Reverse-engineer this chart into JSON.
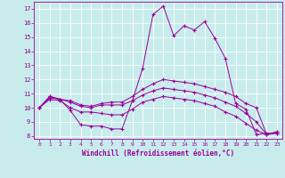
{
  "xlabel": "Windchill (Refroidissement éolien,°C)",
  "bg_color": "#c8ecec",
  "line_color": "#990099",
  "grid_color": "#ffffff",
  "xlim": [
    -0.5,
    23.5
  ],
  "ylim": [
    7.8,
    17.5
  ],
  "xticks": [
    0,
    1,
    2,
    3,
    4,
    5,
    6,
    7,
    8,
    9,
    10,
    11,
    12,
    13,
    14,
    15,
    16,
    17,
    18,
    19,
    20,
    21,
    22,
    23
  ],
  "yticks": [
    8,
    9,
    10,
    11,
    12,
    13,
    14,
    15,
    16,
    17
  ],
  "series": [
    {
      "x": [
        0,
        1,
        2,
        3,
        4,
        5,
        6,
        7,
        8,
        9,
        10,
        11,
        12,
        13,
        14,
        15,
        16,
        17,
        18,
        19,
        20,
        21,
        22,
        23
      ],
      "y": [
        10.0,
        10.8,
        10.6,
        9.8,
        8.8,
        8.7,
        8.7,
        8.5,
        8.5,
        10.5,
        12.8,
        16.6,
        17.2,
        15.1,
        15.8,
        15.5,
        16.1,
        14.9,
        13.5,
        10.3,
        9.9,
        8.1,
        8.2,
        8.2
      ]
    },
    {
      "x": [
        0,
        1,
        2,
        3,
        4,
        5,
        6,
        7,
        8,
        9,
        10,
        11,
        12,
        13,
        14,
        15,
        16,
        17,
        18,
        19,
        20,
        21,
        22,
        23
      ],
      "y": [
        10.0,
        10.8,
        10.6,
        10.5,
        10.2,
        10.1,
        10.3,
        10.4,
        10.4,
        10.8,
        11.3,
        11.7,
        12.0,
        11.9,
        11.8,
        11.7,
        11.5,
        11.3,
        11.1,
        10.8,
        10.3,
        10.0,
        8.1,
        8.3
      ]
    },
    {
      "x": [
        0,
        1,
        2,
        3,
        4,
        5,
        6,
        7,
        8,
        9,
        10,
        11,
        12,
        13,
        14,
        15,
        16,
        17,
        18,
        19,
        20,
        21,
        22,
        23
      ],
      "y": [
        10.0,
        10.7,
        10.6,
        10.4,
        10.1,
        10.0,
        10.2,
        10.2,
        10.2,
        10.5,
        10.9,
        11.2,
        11.4,
        11.3,
        11.2,
        11.1,
        10.9,
        10.7,
        10.4,
        10.1,
        9.6,
        9.0,
        8.1,
        8.3
      ]
    },
    {
      "x": [
        0,
        1,
        2,
        3,
        4,
        5,
        6,
        7,
        8,
        9,
        10,
        11,
        12,
        13,
        14,
        15,
        16,
        17,
        18,
        19,
        20,
        21,
        22,
        23
      ],
      "y": [
        10.0,
        10.6,
        10.5,
        10.0,
        9.7,
        9.7,
        9.6,
        9.5,
        9.5,
        9.9,
        10.4,
        10.6,
        10.8,
        10.7,
        10.6,
        10.5,
        10.3,
        10.1,
        9.7,
        9.4,
        8.9,
        8.4,
        8.1,
        8.2
      ]
    }
  ]
}
